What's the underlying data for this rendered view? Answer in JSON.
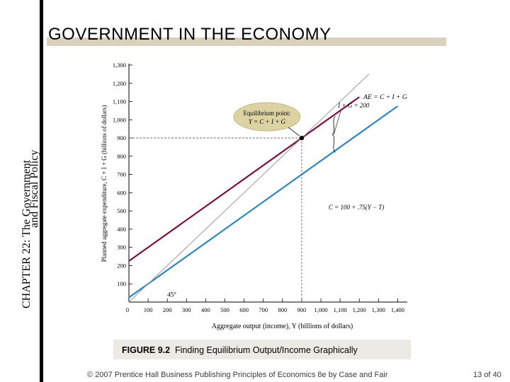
{
  "sidebar": {
    "line1": "CHAPTER 22:  The Government",
    "line2": "and Fiscal Policy"
  },
  "slide": {
    "title": "GOVERNMENT IN THE ECONOMY"
  },
  "figure": {
    "number": "FIGURE 9.2",
    "caption": "Finding Equilibrium Output/Income Graphically"
  },
  "footer": {
    "credit": "© 2007 Prentice Hall Business Publishing   Principles of Economics 8e by Case and Fair",
    "page_current": "13",
    "page_of": "of",
    "page_total": "40"
  },
  "colors": {
    "ae_line": "#7a1040",
    "consumption_line": "#2e86c0",
    "diagonal_45": "#9a9a9a",
    "callout_fill": "#ddd3a2",
    "header_band": "#d9d1bd"
  },
  "chart_data": {
    "type": "line",
    "xlabel": "Aggregate output (income), Y (billions of dollars)",
    "ylabel": "Planned aggregate expenditure, C + I + G (billions of dollars)",
    "xlim": [
      0,
      1450
    ],
    "ylim": [
      0,
      1300
    ],
    "x_ticks": [
      100,
      200,
      300,
      400,
      500,
      600,
      700,
      800,
      900,
      1000,
      1100,
      1200,
      1300,
      1400
    ],
    "x_tick_labels": [
      "100",
      "200",
      "300",
      "400",
      "500",
      "600",
      "700",
      "800",
      "900",
      "1,000",
      "1,100",
      "1,200",
      "1,300",
      "1,400"
    ],
    "y_ticks": [
      100,
      200,
      300,
      400,
      500,
      600,
      700,
      800,
      900,
      1000,
      1100,
      1200,
      1300
    ],
    "y_tick_labels": [
      "100",
      "200",
      "300",
      "400",
      "500",
      "600",
      "700",
      "800",
      "900",
      "1,000",
      "1,100",
      "1,200",
      "1,300"
    ],
    "origin_label": "0",
    "series": [
      {
        "name": "AE = C + I + G",
        "intercept": 225,
        "slope": 0.75,
        "x_range": [
          0,
          1200
        ]
      },
      {
        "name": "C = 100 + .75(Y − T)",
        "intercept": 25,
        "slope": 0.75,
        "x_range": [
          0,
          1400
        ]
      },
      {
        "name": "45°",
        "intercept": 0,
        "slope": 1,
        "x_range": [
          0,
          1250
        ]
      }
    ],
    "equilibrium": {
      "x": 900,
      "y": 900
    },
    "annotations": {
      "ae_label": "AE = C + I + G",
      "c_label": "C = 100 + .75(Y − T)",
      "gap_label": "I + G = 200",
      "diag_label": "45°",
      "callout_line1": "Equilibrium point:",
      "callout_line2": "Y = C + I + G"
    }
  }
}
